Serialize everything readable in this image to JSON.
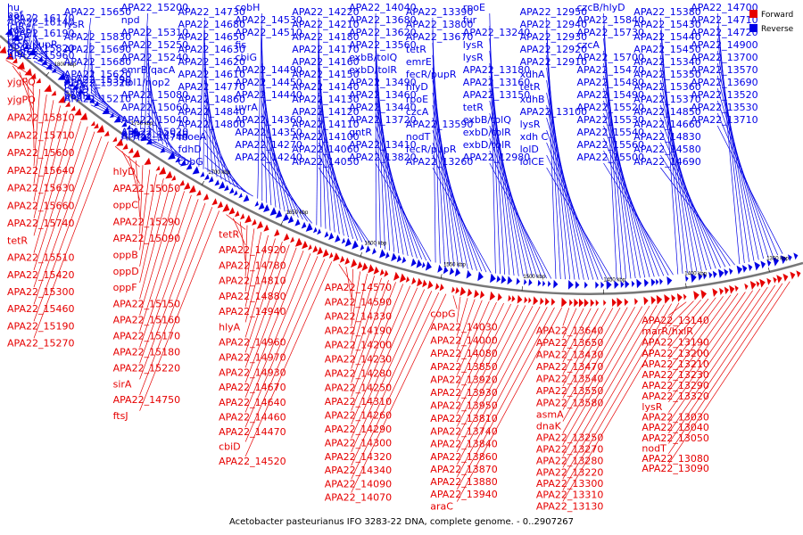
{
  "caption": "Acetobacter pasteurianus IFO 3283-22 DNA, complete genome. - 0..2907267",
  "legend": {
    "forward_label": "Forward",
    "reverse_label": "Reverse",
    "forward_color": "#e60000",
    "reverse_color": "#0000e6"
  },
  "ticks": [
    "1800 kbp",
    "1750 kbp",
    "1700 kbp",
    "1650 kbp",
    "1600 kbp",
    "1550 kbp",
    "1500 kbp",
    "1450 kbp",
    "1400 kbp",
    "1350 kbp"
  ],
  "reverse_labels": [
    "hu",
    "baf",
    "APA22_16170",
    "APA22_16140",
    "iclR",
    "kdpE",
    "APA22_16190",
    "rpoE",
    "czcC",
    "fecR/pupR",
    "APA22_15820",
    "mgtC",
    "APA22_15960",
    "APA22_15650",
    "lysR",
    "APA22_15830",
    "APA22_15690",
    "APA22_15680",
    "APA22_15620",
    "APA22_15390",
    "APA22_15320",
    "fcuA",
    "cvdD",
    "cvdC",
    "padR",
    "APA22_15210",
    "APA22_15200",
    "npd",
    "APA22_15310",
    "APA22_15250",
    "APA22_15240",
    "emrB/qacA",
    "nol1/nop2",
    "APA22_15080",
    "APA22_15060",
    "APA22_15040",
    "APA22_15020",
    "APA22_14540",
    "APA22_14740",
    "APA22_14730",
    "APA22_14680",
    "APA22_14650",
    "APA22_14630",
    "APA22_14620",
    "APA22_14610",
    "APA22_14770",
    "APA22_14860",
    "APA22_14840",
    "APA22_14800",
    "moeA",
    "fdhD",
    "cobG",
    "cobH",
    "APA22_14530",
    "APA22_14510",
    "fis",
    "cbiG",
    "APA22_14490",
    "APA22_14450",
    "APA22_14440",
    "uvrA",
    "APA22_14360",
    "APA22_14350",
    "APA22_14270",
    "APA22_14240",
    "APA22_14220",
    "APA22_14210",
    "APA22_14180",
    "APA22_14170",
    "APA22_14160",
    "APA22_14150",
    "APA22_14140",
    "APA22_14130",
    "APA22_14120",
    "APA22_14110",
    "APA22_14100",
    "APA22_14060",
    "APA22_14050",
    "APA22_14040",
    "APA22_13680",
    "APA22_13620",
    "APA22_13560",
    "exbB/tolQ",
    "exbD/tolR",
    "APA22_13490",
    "APA22_13460",
    "APA22_13440",
    "APA22_13720",
    "gntR",
    "APA22_13410",
    "APA22_13820",
    "APA22_13390",
    "APA22_13800",
    "APA22_13670",
    "tetR",
    "emrE",
    "fecR/pupR",
    "hlyD",
    "rpoE",
    "czcA",
    "APA22_13590",
    "nodT",
    "fecR/pupR",
    "APA22_13260",
    "rpoE",
    "fur",
    "APA22_13240",
    "lysR",
    "lysR",
    "APA22_13180",
    "APA22_13160",
    "APA22_13150",
    "tetR",
    "exbB/tolQ",
    "exbD/tolR",
    "exbD/tolR",
    "APA22_12980",
    "APA22_12950",
    "APA22_12940",
    "APA22_12930",
    "APA22_12920",
    "APA22_12910",
    "xdhA",
    "tetR",
    "xdhB",
    "APA22_13100",
    "lysR",
    "xdh C",
    "lolD",
    "lolCE",
    "czcB/hlyD",
    "APA22_15840",
    "APA22_15730",
    "czcA",
    "APA22_15700",
    "APA22_15470",
    "APA22_15480",
    "APA22_15490",
    "APA22_15520",
    "APA22_15530",
    "APA22_15540",
    "APA22_15560",
    "APA22_15500",
    "APA22_15380",
    "APA22_15430",
    "APA22_15440",
    "APA22_15450",
    "APA22_15340",
    "APA22_15350",
    "APA22_15360",
    "APA22_15370",
    "APA22_14850",
    "APA22_14660",
    "APA22_14830",
    "APA22_14580",
    "APA22_14690",
    "APA22_14700",
    "APA22_14710",
    "APA22_14720",
    "APA22_14900",
    "APA22_13700",
    "APA22_13570",
    "APA22_13690",
    "APA22_13520",
    "APA22_13530",
    "APA22_13710"
  ],
  "forward_labels": [
    "yjgPQ",
    "yjgPQ",
    "APA22_15810",
    "APA22_15710",
    "APA22_15600",
    "APA22_15640",
    "APA22_15630",
    "APA22_15660",
    "APA22_15740",
    "tetR",
    "APA22_15510",
    "APA22_15420",
    "APA22_15300",
    "APA22_15460",
    "APA22_15190",
    "APA22_15270",
    "hlyD",
    "APA22_15050",
    "oppC",
    "APA22_15290",
    "APA22_15090",
    "oppB",
    "oppD",
    "oppF",
    "APA22_15150",
    "APA22_15160",
    "APA22_15170",
    "APA22_15180",
    "APA22_15220",
    "sirA",
    "APA22_14750",
    "ftsJ",
    "tetR",
    "APA22_14920",
    "APA22_14780",
    "APA22_14810",
    "APA22_14880",
    "APA22_14940",
    "hlyA",
    "APA22_14960",
    "APA22_14970",
    "APA22_14930",
    "APA22_14670",
    "APA22_14640",
    "APA22_14460",
    "APA22_14470",
    "cbiD",
    "APA22_14520",
    "APA22_14570",
    "APA22_14590",
    "APA22_14330",
    "APA22_14190",
    "APA22_14200",
    "APA22_14230",
    "APA22_14280",
    "APA22_14250",
    "APA22_14310",
    "APA22_14260",
    "APA22_14290",
    "APA22_14300",
    "APA22_14320",
    "APA22_14340",
    "APA22_14090",
    "APA22_14070",
    "copG",
    "APA22_14030",
    "APA22_14000",
    "APA22_14080",
    "APA22_13850",
    "APA22_13920",
    "APA22_13930",
    "APA22_13950",
    "APA22_13810",
    "APA22_13740",
    "APA22_13840",
    "APA22_13860",
    "APA22_13870",
    "APA22_13880",
    "APA22_13940",
    "araC",
    "APA22_13640",
    "APA22_13650",
    "APA22_13430",
    "APA22_13470",
    "APA22_13540",
    "APA22_13550",
    "APA22_13580",
    "asmA",
    "dnaK",
    "APA22_13250",
    "APA22_13270",
    "APA22_13280",
    "APA22_13220",
    "APA22_13300",
    "APA22_13310",
    "APA22_13130",
    "APA22_13140",
    "marR/hxlR",
    "APA22_13190",
    "APA22_13200",
    "APA22_13210",
    "APA22_13230",
    "APA22_13290",
    "APA22_13320",
    "lysR",
    "APA22_13030",
    "APA22_13040",
    "APA22_13050",
    "nodT",
    "APA22_13080",
    "APA22_13090"
  ]
}
